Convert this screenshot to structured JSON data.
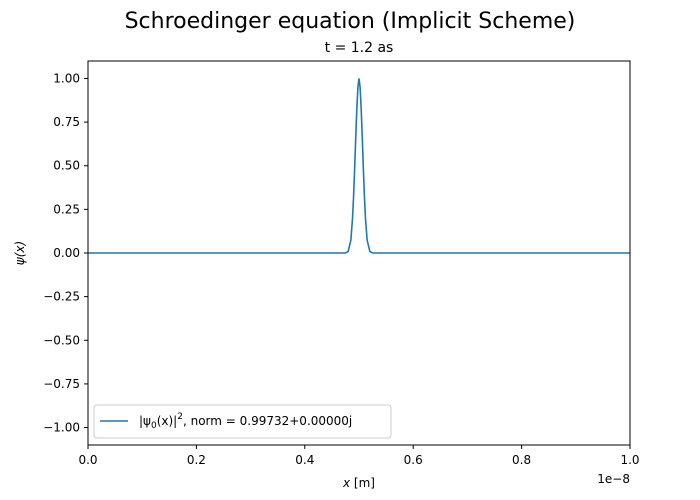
{
  "chart_data": {
    "type": "line",
    "title": "Schroedinger equation (Implicit Scheme)",
    "subtitle": "t = 1.2 as",
    "xlabel_var": "x",
    "xlabel_unit": " [m]",
    "ylabel_var": "ψ(x)",
    "x_offset_text": "1e−8",
    "xlim": [
      0.0,
      1.0
    ],
    "ylim": [
      -1.1,
      1.1
    ],
    "xticks": [
      0.0,
      0.2,
      0.4,
      0.6,
      0.8,
      1.0
    ],
    "xtick_labels": [
      "0.0",
      "0.2",
      "0.4",
      "0.6",
      "0.8",
      "1.0"
    ],
    "yticks": [
      -1.0,
      -0.75,
      -0.5,
      -0.25,
      0.0,
      0.25,
      0.5,
      0.75,
      1.0
    ],
    "ytick_labels": [
      "−1.00",
      "−0.75",
      "−0.50",
      "−0.25",
      "0.00",
      "0.25",
      "0.50",
      "0.75",
      "1.00"
    ],
    "grid": false,
    "legend_position": "lower-left",
    "legend": {
      "label_prefix": "|ψ",
      "label_sub": "0",
      "label_mid": "(x)|",
      "label_sup": "2",
      "label_suffix": ", norm = 0.99732+0.00000j"
    },
    "series": [
      {
        "color": "#1f77b4",
        "x": [
          0.0,
          0.3,
          0.47,
          0.475,
          0.48,
          0.485,
          0.488,
          0.49,
          0.492,
          0.494,
          0.496,
          0.498,
          0.5,
          0.502,
          0.504,
          0.506,
          0.508,
          0.51,
          0.512,
          0.515,
          0.52,
          0.525,
          0.53,
          0.7,
          1.0
        ],
        "y": [
          0.0,
          0.0,
          0.0,
          0.0005,
          0.0088,
          0.0743,
          0.1969,
          0.3247,
          0.4868,
          0.6639,
          0.8282,
          0.9506,
          1.0,
          0.9506,
          0.8282,
          0.6639,
          0.4868,
          0.3247,
          0.1969,
          0.0743,
          0.0088,
          0.0005,
          0.0,
          0.0,
          0.0
        ]
      }
    ]
  }
}
